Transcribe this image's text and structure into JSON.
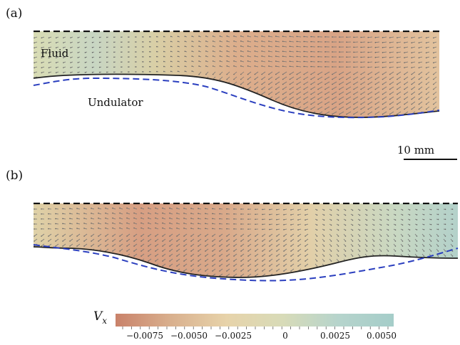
{
  "panels": [
    {
      "label": "(a)",
      "fluid_label": "Fluid",
      "solid_label": "Undulator"
    },
    {
      "label": "(b)"
    }
  ],
  "scale_bar": {
    "label": "10 mm"
  },
  "colorbar": {
    "label": "V",
    "label_subscript": "x",
    "ticks": [
      "−0.0075",
      "−0.0050",
      "−0.0025",
      "0",
      "0.0025",
      "0.0050"
    ],
    "colors": [
      "#c9826a",
      "#d9b08e",
      "#e7d3aa",
      "#d8dbb8",
      "#b6d4cc",
      "#a5cdc9"
    ]
  }
}
